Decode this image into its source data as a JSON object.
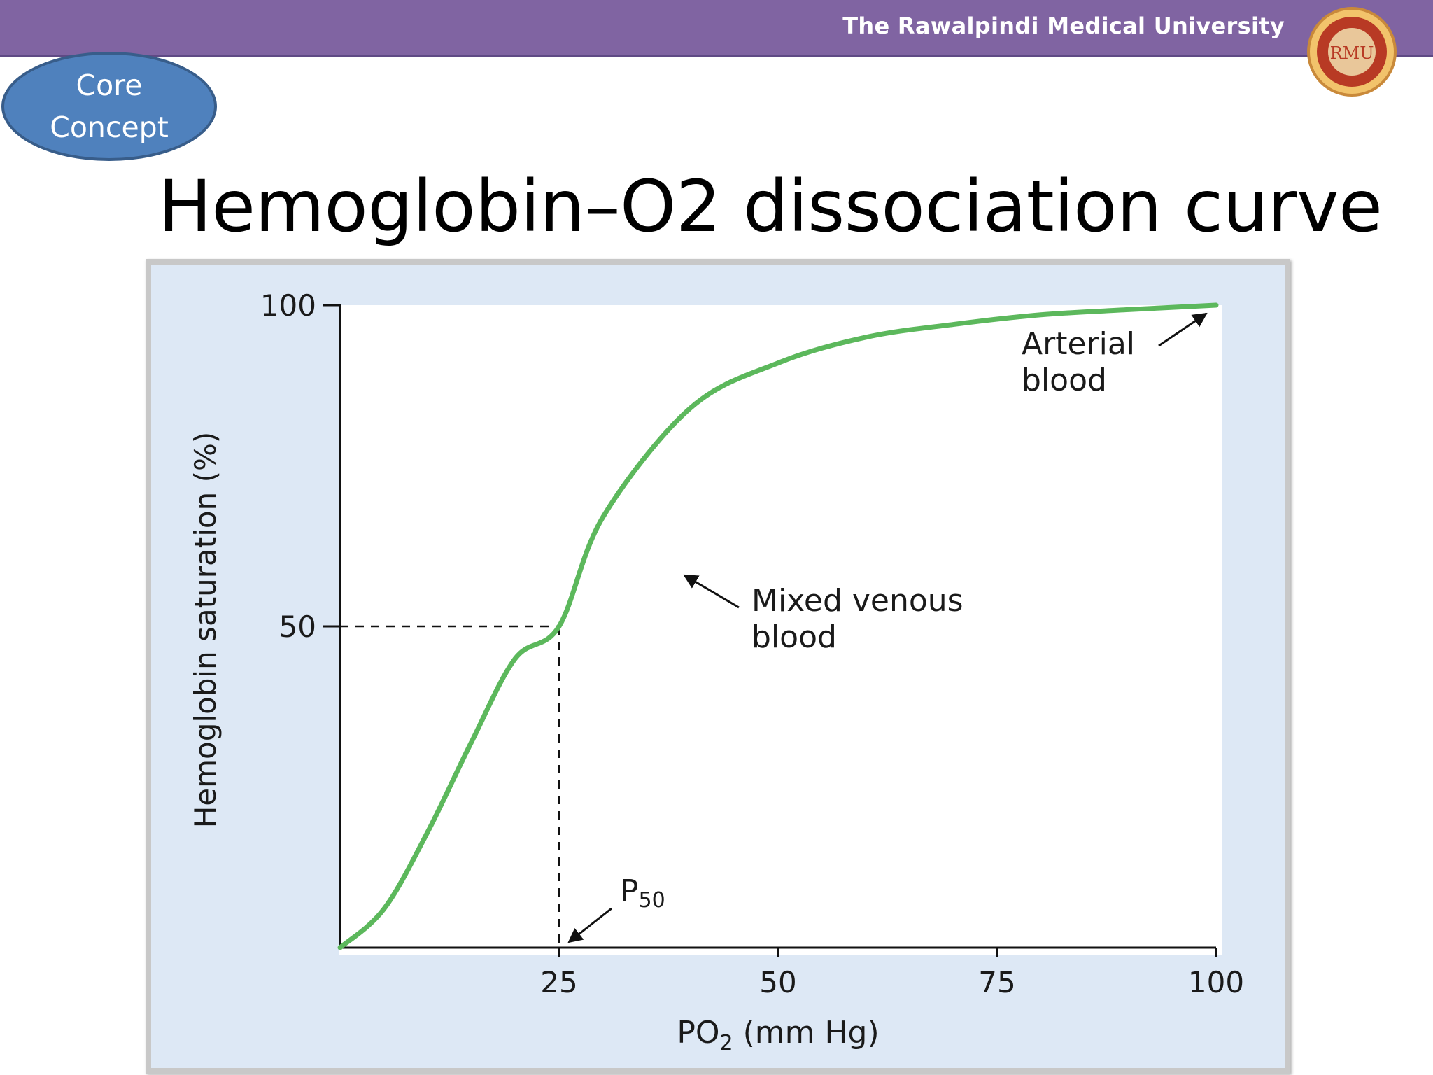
{
  "header": {
    "title": "The Rawalpindi Medical University",
    "logo_initials": "RMU"
  },
  "badge": {
    "label": "Core\nConcept"
  },
  "page_title": "Hemoglobin–O2 dissociation curve",
  "colors": {
    "header_bg": "#8064a2",
    "badge_bg": "#4f81bd",
    "curve": "#5cb85c",
    "figure_bg": "#dde8f5",
    "plot_bg": "#ffffff"
  },
  "chart_data": {
    "type": "line",
    "title": "",
    "xlabel": "PO2 (mm Hg)",
    "xlabel_main": "PO",
    "xlabel_sub": "2",
    "xlabel_rest": " (mm Hg)",
    "ylabel": "Hemoglobin saturation (%)",
    "xlim": [
      0,
      100
    ],
    "ylim": [
      0,
      100
    ],
    "x_ticks": [
      25,
      50,
      75,
      100
    ],
    "y_ticks": [
      50,
      100
    ],
    "grid": false,
    "series": [
      {
        "x": [
          0,
          5,
          10,
          15,
          20,
          25,
          30,
          40,
          50,
          60,
          70,
          80,
          90,
          100
        ],
        "y": [
          0,
          6,
          18,
          32,
          45,
          50,
          67,
          84,
          91,
          95,
          97,
          98.5,
          99.3,
          100
        ]
      }
    ],
    "reference_point": {
      "x": 25,
      "y": 50
    },
    "annotations": [
      {
        "text_main": "P",
        "text_sub": "50",
        "points_to": [
          25,
          0
        ]
      },
      {
        "text_line1": "Mixed venous",
        "text_line2": "blood",
        "points_to": [
          40,
          75
        ]
      },
      {
        "text_line1": "Arterial",
        "text_line2": "blood",
        "points_to": [
          100,
          100
        ]
      }
    ]
  }
}
